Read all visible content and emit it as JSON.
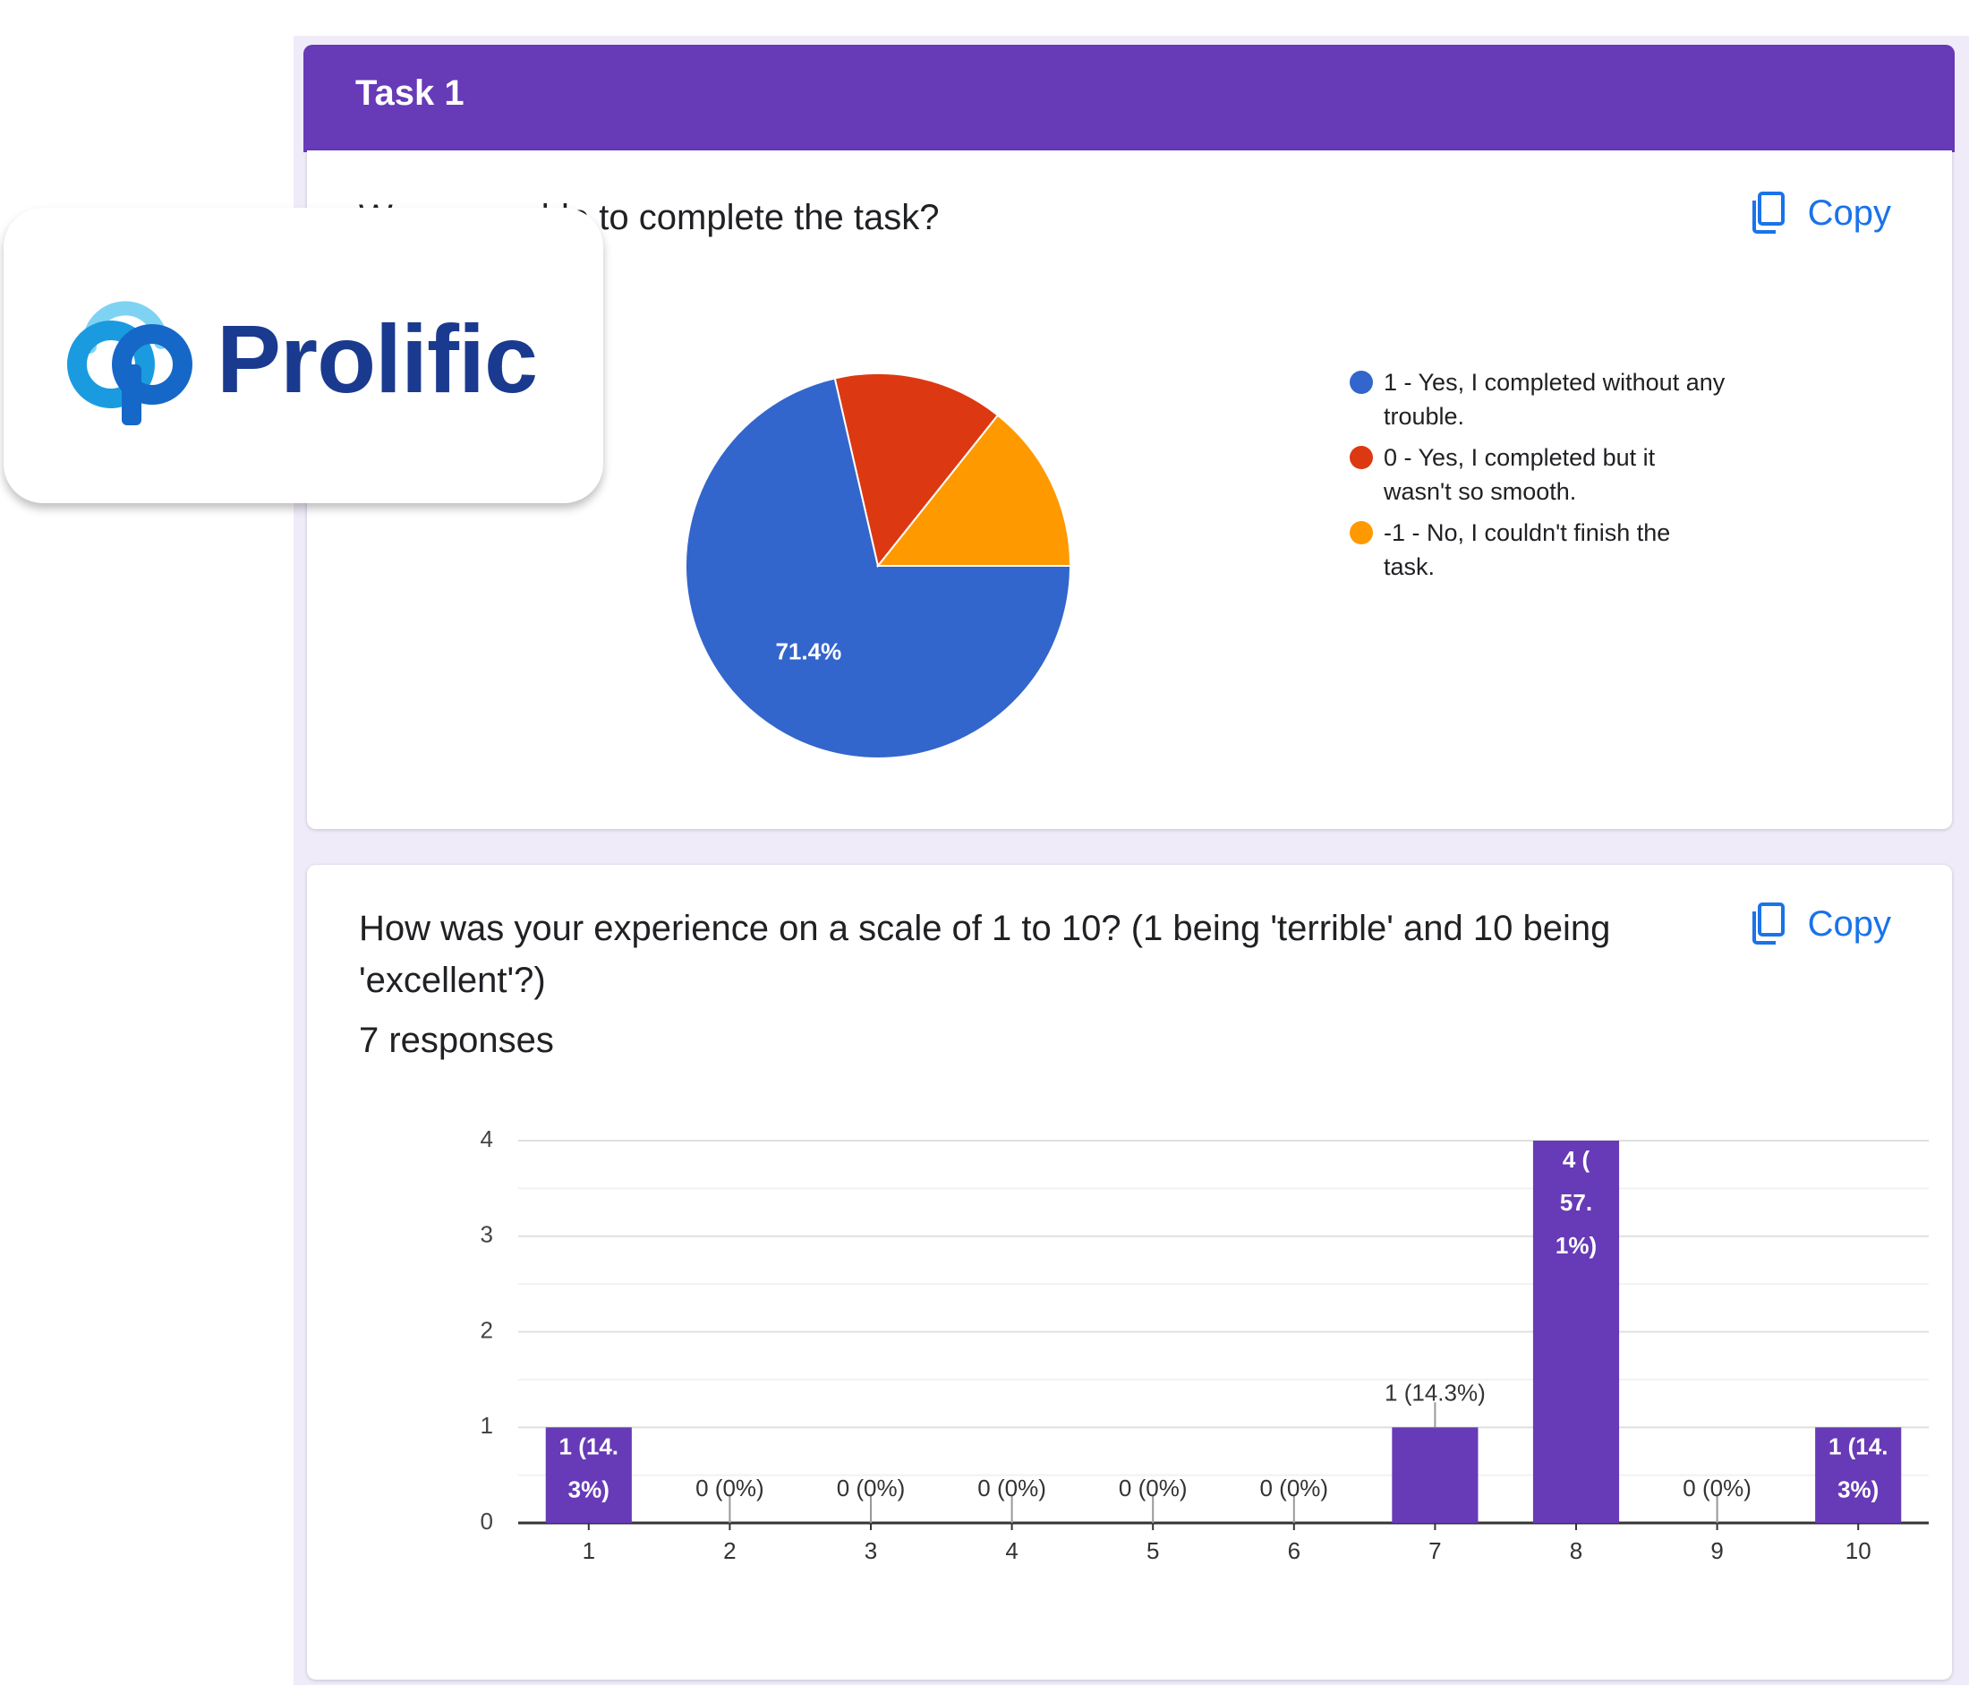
{
  "brand": {
    "name": "Prolific"
  },
  "section": {
    "title": "Task 1"
  },
  "question1": {
    "text": "Were you able to complete the task?",
    "copy_label": "Copy"
  },
  "question2": {
    "text": "How was your experience on a scale of 1 to 10? (1 being 'terrible' and 10 being 'excellent'?)",
    "responses": "7 responses",
    "copy_label": "Copy"
  },
  "chart_data": [
    {
      "type": "pie",
      "title": "Were you able to complete the task?",
      "labels": [
        "1 - Yes, I completed without any trouble.",
        "0 - Yes, I completed but it wasn't so smooth.",
        "-1 - No, I couldn't finish the task."
      ],
      "values": [
        71.4,
        14.3,
        14.3
      ],
      "slice_labels": [
        "71.4%",
        "",
        ""
      ],
      "colors": [
        "#3366cc",
        "#dc3912",
        "#ff9900"
      ],
      "legend": "right"
    },
    {
      "type": "bar",
      "categories": [
        "1",
        "2",
        "3",
        "4",
        "5",
        "6",
        "7",
        "8",
        "9",
        "10"
      ],
      "values": [
        1,
        0,
        0,
        0,
        0,
        0,
        1,
        4,
        0,
        1
      ],
      "data_labels": [
        "1 (14.3%)",
        "0 (0%)",
        "0 (0%)",
        "0 (0%)",
        "0 (0%)",
        "0 (0%)",
        "1 (14.3%)",
        "4 (57.1%)",
        "0 (0%)",
        "1 (14.3%)"
      ],
      "y_ticks": [
        "0",
        "1",
        "2",
        "3",
        "4"
      ],
      "ylim": [
        0,
        4
      ],
      "grid": true,
      "color": "#673ab7"
    }
  ]
}
